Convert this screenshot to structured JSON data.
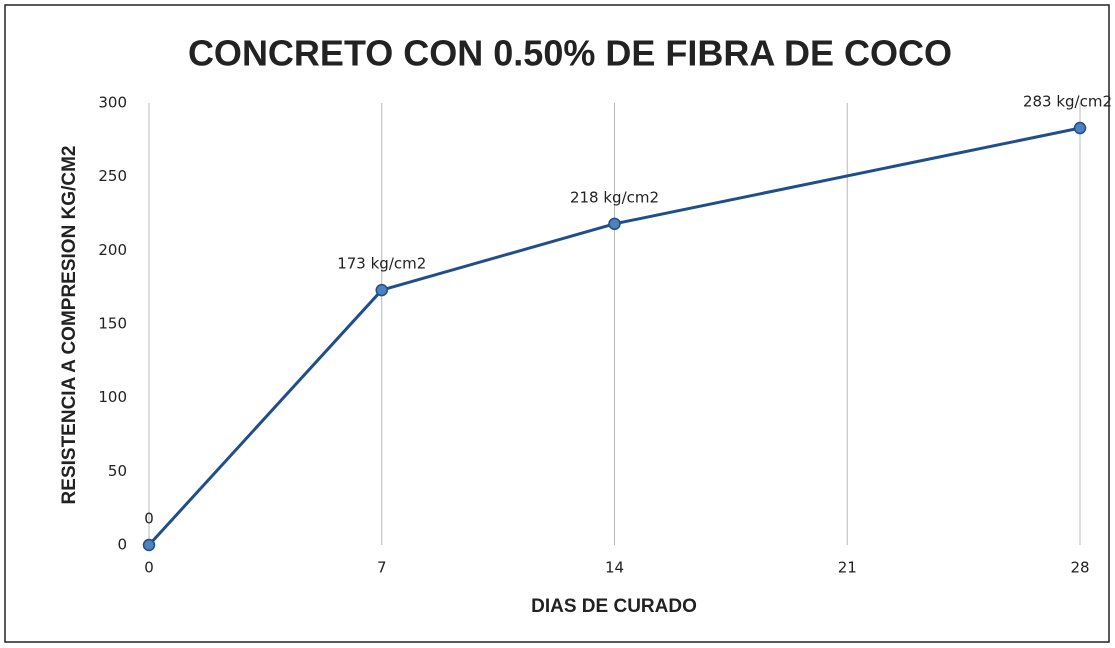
{
  "chart_data": {
    "type": "line",
    "title": "CONCRETO CON 0.50% DE FIBRA DE COCO",
    "x_label": "DIAS DE CURADO",
    "y_label": "RESISTENCIA A COMPRESION KG/CM2",
    "x": [
      0,
      7,
      14,
      28
    ],
    "series": [
      {
        "color": "#1f4e8c",
        "marker_color": "#4f81bd",
        "values": [
          0,
          173,
          218,
          283
        ],
        "value_labels": [
          "0",
          "173 kg/cm2",
          "218 kg/cm2",
          "283 kg/cm2"
        ]
      }
    ],
    "xlim": [
      0,
      28
    ],
    "xticks": [
      0,
      7,
      14,
      21,
      28
    ],
    "ylim": [
      0,
      300
    ],
    "yticks": [
      0,
      50,
      100,
      150,
      200,
      250,
      300
    ],
    "xgrid": true
  }
}
